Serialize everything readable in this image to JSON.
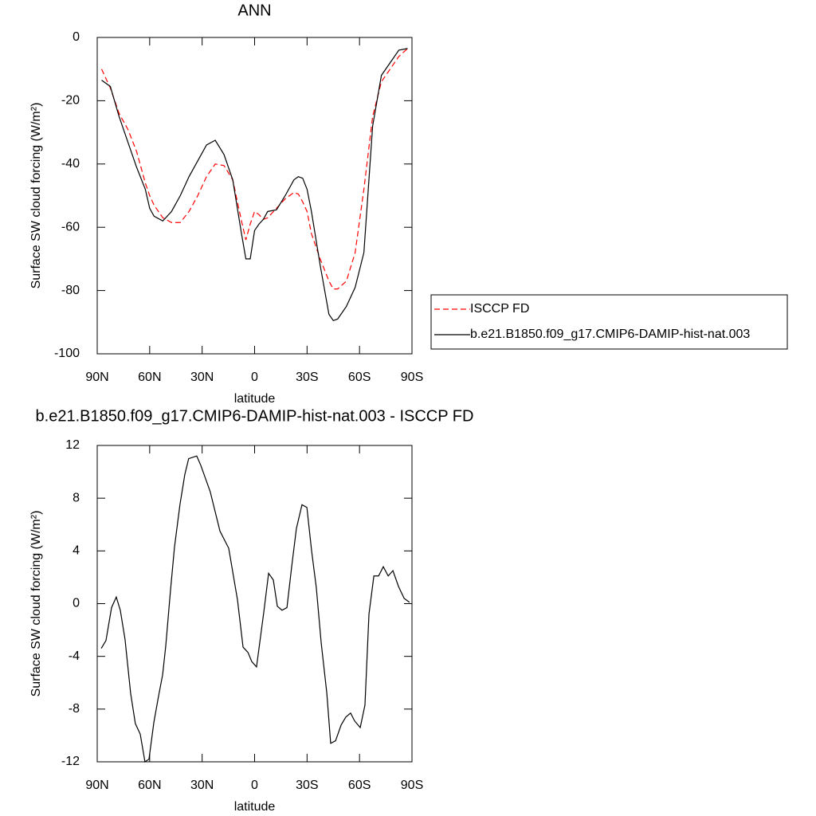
{
  "chart_data": [
    {
      "type": "line",
      "title": "ANN",
      "x_label": "latitude",
      "y_label": "Surface SW cloud forcing (W/m²)",
      "x": [
        87.5,
        82.5,
        77.5,
        72.5,
        67.5,
        62.5,
        60,
        57.5,
        52.5,
        47.5,
        42.5,
        37.5,
        32.5,
        27.5,
        22.5,
        17.5,
        12.5,
        7.5,
        5,
        2.5,
        0,
        -2.5,
        -5,
        -7.5,
        -12.5,
        -17.5,
        -22.5,
        -25,
        -27.5,
        -30,
        -32.5,
        -37.5,
        -42.5,
        -45,
        -47.5,
        -52.5,
        -57.5,
        -62.5,
        -67.5,
        -72.5,
        -77.5,
        -82.5,
        -87.5
      ],
      "series": [
        {
          "name": "ISCCP FD",
          "color": "#ff0000",
          "style": "dashed",
          "values": [
            -10,
            -16,
            -24,
            -29,
            -36,
            -46,
            -50,
            -53,
            -57,
            -58.5,
            -58.5,
            -55,
            -50,
            -44,
            -40,
            -40.5,
            -45,
            -58,
            -64,
            -59,
            -55,
            -56,
            -57.5,
            -57,
            -54,
            -51,
            -49,
            -49.5,
            -52,
            -55,
            -62,
            -70,
            -77,
            -79.5,
            -79.5,
            -77,
            -68,
            -48,
            -25,
            -14,
            -10,
            -6,
            -3.5
          ]
        },
        {
          "name": "b.e21.B1850.f09_g17.CMIP6-DAMIP-hist-nat.003",
          "color": "#000000",
          "style": "solid",
          "values": [
            -13.5,
            -15.5,
            -25,
            -33,
            -41,
            -48,
            -54,
            -56.5,
            -58,
            -55,
            -50,
            -44,
            -39,
            -34,
            -32.5,
            -37,
            -45,
            -62,
            -70,
            -70,
            -61,
            -59,
            -57.5,
            -55,
            -54.5,
            -50,
            -45,
            -44,
            -44.5,
            -48,
            -55,
            -72,
            -87.5,
            -89.5,
            -89,
            -85,
            -79,
            -68,
            -28,
            -12,
            -8,
            -4,
            -3.5
          ]
        }
      ],
      "xlim": [
        90,
        -90
      ],
      "xticks": [
        {
          "value": 90,
          "label": "90N"
        },
        {
          "value": 60,
          "label": "60N"
        },
        {
          "value": 30,
          "label": "30N"
        },
        0,
        {
          "value": -30,
          "label": "30S"
        },
        {
          "value": -60,
          "label": "60S"
        },
        {
          "value": -90,
          "label": "90S"
        }
      ],
      "ylim": [
        -100,
        0
      ],
      "yticks": [
        0,
        -20,
        -40,
        -60,
        -80,
        -100
      ],
      "legend": "right"
    },
    {
      "type": "line",
      "title": "b.e21.B1850.f09_g17.CMIP6-DAMIP-hist-nat.003 - ISCCP FD",
      "x_label": "latitude",
      "y_label": "Surface SW cloud forcing (W/m²)",
      "x": [
        87.7,
        85.0,
        81.8,
        79.1,
        76.8,
        74.1,
        70.9,
        68.2,
        65.4,
        62.7,
        60.4,
        57.6,
        54.9,
        52.6,
        50.8,
        48.1,
        45.8,
        42.7,
        39.9,
        37.7,
        33.1,
        30.8,
        25.4,
        19.8,
        14.8,
        9.8,
        6.6,
        3.8,
        1.6,
        -1.1,
        -5.3,
        -8.0,
        -10.7,
        -13.0,
        -15.7,
        -18.5,
        -21.2,
        -23.9,
        -27.1,
        -29.9,
        -32.6,
        -35.3,
        -38.1,
        -41.3,
        -43.5,
        -46.3,
        -49.5,
        -52.2,
        -54.9,
        -57.2,
        -60.4,
        -63.1,
        -65.4,
        -68.2,
        -70.9,
        -73.6,
        -76.4,
        -79.1,
        -82.3,
        -85.5,
        -88.6
      ],
      "series": [
        {
          "color": "#000000",
          "style": "solid",
          "values": [
            -3.4,
            -2.8,
            -0.3,
            0.5,
            -0.5,
            -2.7,
            -6.8,
            -9.1,
            -9.9,
            -12,
            -11.8,
            -9,
            -7,
            -5.4,
            -3.2,
            1,
            4.3,
            7.5,
            9.8,
            11,
            11.2,
            10.5,
            8.5,
            5.5,
            4.2,
            0.3,
            -3.3,
            -3.7,
            -4.4,
            -4.8,
            -0.6,
            2.3,
            1.8,
            -0.2,
            -0.5,
            -0.3,
            2.8,
            5.7,
            7.5,
            7.3,
            4,
            1.2,
            -3,
            -6.8,
            -10.6,
            -10.4,
            -9.2,
            -8.6,
            -8.3,
            -8.9,
            -9.4,
            -7.7,
            -0.8,
            2.1,
            2.1,
            2.8,
            2.1,
            2.5,
            1.3,
            0.4,
            0.1
          ]
        }
      ],
      "xlim": [
        90,
        -90
      ],
      "xticks": [
        {
          "value": 90,
          "label": "90N"
        },
        {
          "value": 60,
          "label": "60N"
        },
        {
          "value": 30,
          "label": "30N"
        },
        0,
        {
          "value": -30,
          "label": "30S"
        },
        {
          "value": -60,
          "label": "60S"
        },
        {
          "value": -90,
          "label": "90S"
        }
      ],
      "ylim": [
        -12,
        12
      ],
      "yticks": [
        12,
        8,
        4,
        0,
        -4,
        -8,
        -12
      ]
    }
  ]
}
